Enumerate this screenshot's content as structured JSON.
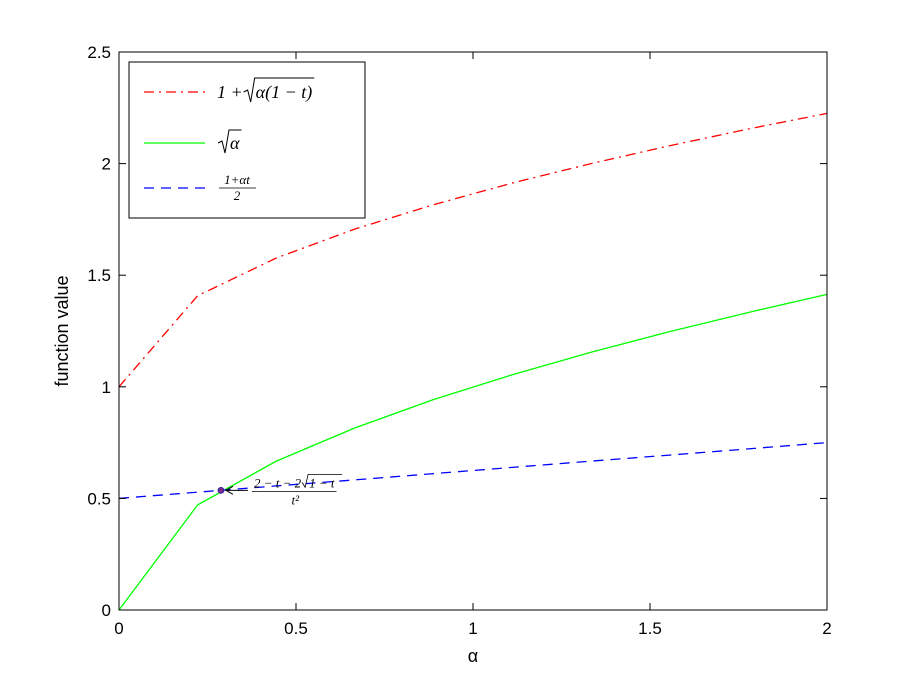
{
  "chart_data": {
    "type": "line",
    "xlabel": "α",
    "ylabel": "function value",
    "xlim": [
      0,
      2
    ],
    "ylim": [
      0,
      2.5
    ],
    "xticks": [
      "0",
      "0.5",
      "1",
      "1.5",
      "2"
    ],
    "yticks": [
      "0",
      "0.5",
      "1",
      "1.5",
      "2",
      "2.5"
    ],
    "grid": false,
    "legend_position": "top-left",
    "x": [
      0,
      0.2222,
      0.4444,
      0.6667,
      0.8889,
      1.1111,
      1.3333,
      1.5556,
      1.7778,
      2.0
    ],
    "series": [
      {
        "name": "1 + √(α(1 − t))",
        "legend_main": "1 + ",
        "legend_radicand": "α(1 − t)",
        "color": "#ff0000",
        "style": "dash-dot",
        "values": [
          1.0,
          1.408,
          1.577,
          1.707,
          1.816,
          1.913,
          2.0,
          2.08,
          2.155,
          2.225
        ]
      },
      {
        "name": "√α",
        "legend_radicand": "α",
        "color": "#00ff00",
        "style": "solid",
        "values": [
          0,
          0.471,
          0.667,
          0.816,
          0.943,
          1.054,
          1.155,
          1.247,
          1.333,
          1.414
        ]
      },
      {
        "name": "(1+αt)/2",
        "legend_numerator": "1+αt",
        "legend_denominator": "2",
        "color": "#0000ff",
        "style": "dashed",
        "values": [
          0.5,
          0.528,
          0.556,
          0.583,
          0.611,
          0.639,
          0.667,
          0.694,
          0.722,
          0.75
        ]
      }
    ],
    "annotations": [
      {
        "x": 0.288,
        "y": 0.536,
        "numerator": "2 − t − 2√(1 − t)",
        "num_prefix": "2 − t − 2",
        "num_radicand": "1 − t",
        "denominator": "t²",
        "marker_color": "#7a2a8a"
      }
    ]
  }
}
